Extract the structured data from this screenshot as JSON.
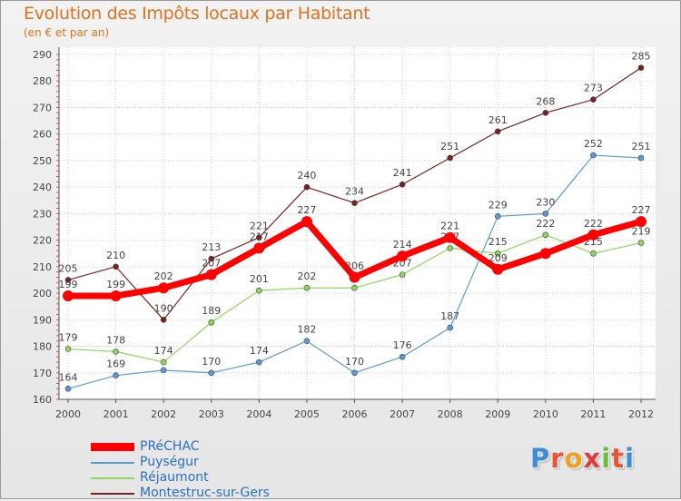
{
  "header": {
    "title": "Evolution des Impôts locaux par Habitant",
    "subtitle": "(en € et par an)"
  },
  "logo": {
    "text": "Proxiti",
    "letters": [
      "P",
      "r",
      "o",
      "x",
      "i",
      "t",
      "i"
    ],
    "colors": [
      "#3a8fd6",
      "#e4553a",
      "#f0a020",
      "#e43a3a",
      "#6bbf3a",
      "#e4553a",
      "#3a8fd6"
    ]
  },
  "chart_data": {
    "type": "line",
    "title": "Evolution des Impôts locaux par Habitant",
    "subtitle": "(en € et par an)",
    "xlabel": "",
    "ylabel": "",
    "x": [
      "2000",
      "2001",
      "2002",
      "2003",
      "2004",
      "2005",
      "2006",
      "2007",
      "2008",
      "2009",
      "2010",
      "2011",
      "2012"
    ],
    "ylim": [
      160,
      290
    ],
    "yticks": [
      160,
      170,
      180,
      190,
      200,
      210,
      220,
      230,
      240,
      250,
      260,
      270,
      280,
      290
    ],
    "grid": true,
    "legend_position": "bottom-left",
    "series": [
      {
        "name": "Montestruc-sur-Gers",
        "color": "#7a2020",
        "values": [
          205,
          210,
          190,
          213,
          221,
          240,
          234,
          241,
          251,
          261,
          268,
          273,
          285
        ]
      },
      {
        "name": "Puységur",
        "color": "#5b9bd5",
        "values": [
          164,
          169,
          171,
          170,
          174,
          182,
          170,
          176,
          187,
          229,
          230,
          252,
          251
        ]
      },
      {
        "name": "Réjaumont",
        "color": "#8fd65a",
        "values": [
          179,
          178,
          174,
          189,
          201,
          202,
          202,
          207,
          217,
          215,
          222,
          215,
          219
        ]
      },
      {
        "name": "PRéCHAC",
        "color": "#ff0000",
        "values": [
          199,
          199,
          202,
          207,
          217,
          227,
          206,
          214,
          221,
          209,
          215,
          222,
          227
        ]
      }
    ],
    "data_labels": {
      "Montestruc-sur-Gers": [
        "205",
        "210",
        "190",
        "213",
        "221",
        "240",
        "234",
        "241",
        "251",
        "261",
        "268",
        "273",
        "285"
      ],
      "Puységur": [
        "164",
        "169",
        "",
        "170",
        "174",
        "182",
        "170",
        "176",
        "187",
        "229",
        "230",
        "252",
        "251"
      ],
      "Réjaumont": [
        "179",
        "178",
        "174",
        "189",
        "201",
        "202",
        "",
        "207",
        "217",
        "215",
        "222",
        "215",
        "219"
      ],
      "PRéCHAC": [
        "199",
        "199",
        "202",
        "207",
        "217",
        "227",
        "206",
        "214",
        "221",
        "209",
        "",
        "222",
        "227"
      ]
    },
    "legend": [
      "PRéCHAC",
      "Puységur",
      "Réjaumont",
      "Montestruc-sur-Gers"
    ]
  }
}
